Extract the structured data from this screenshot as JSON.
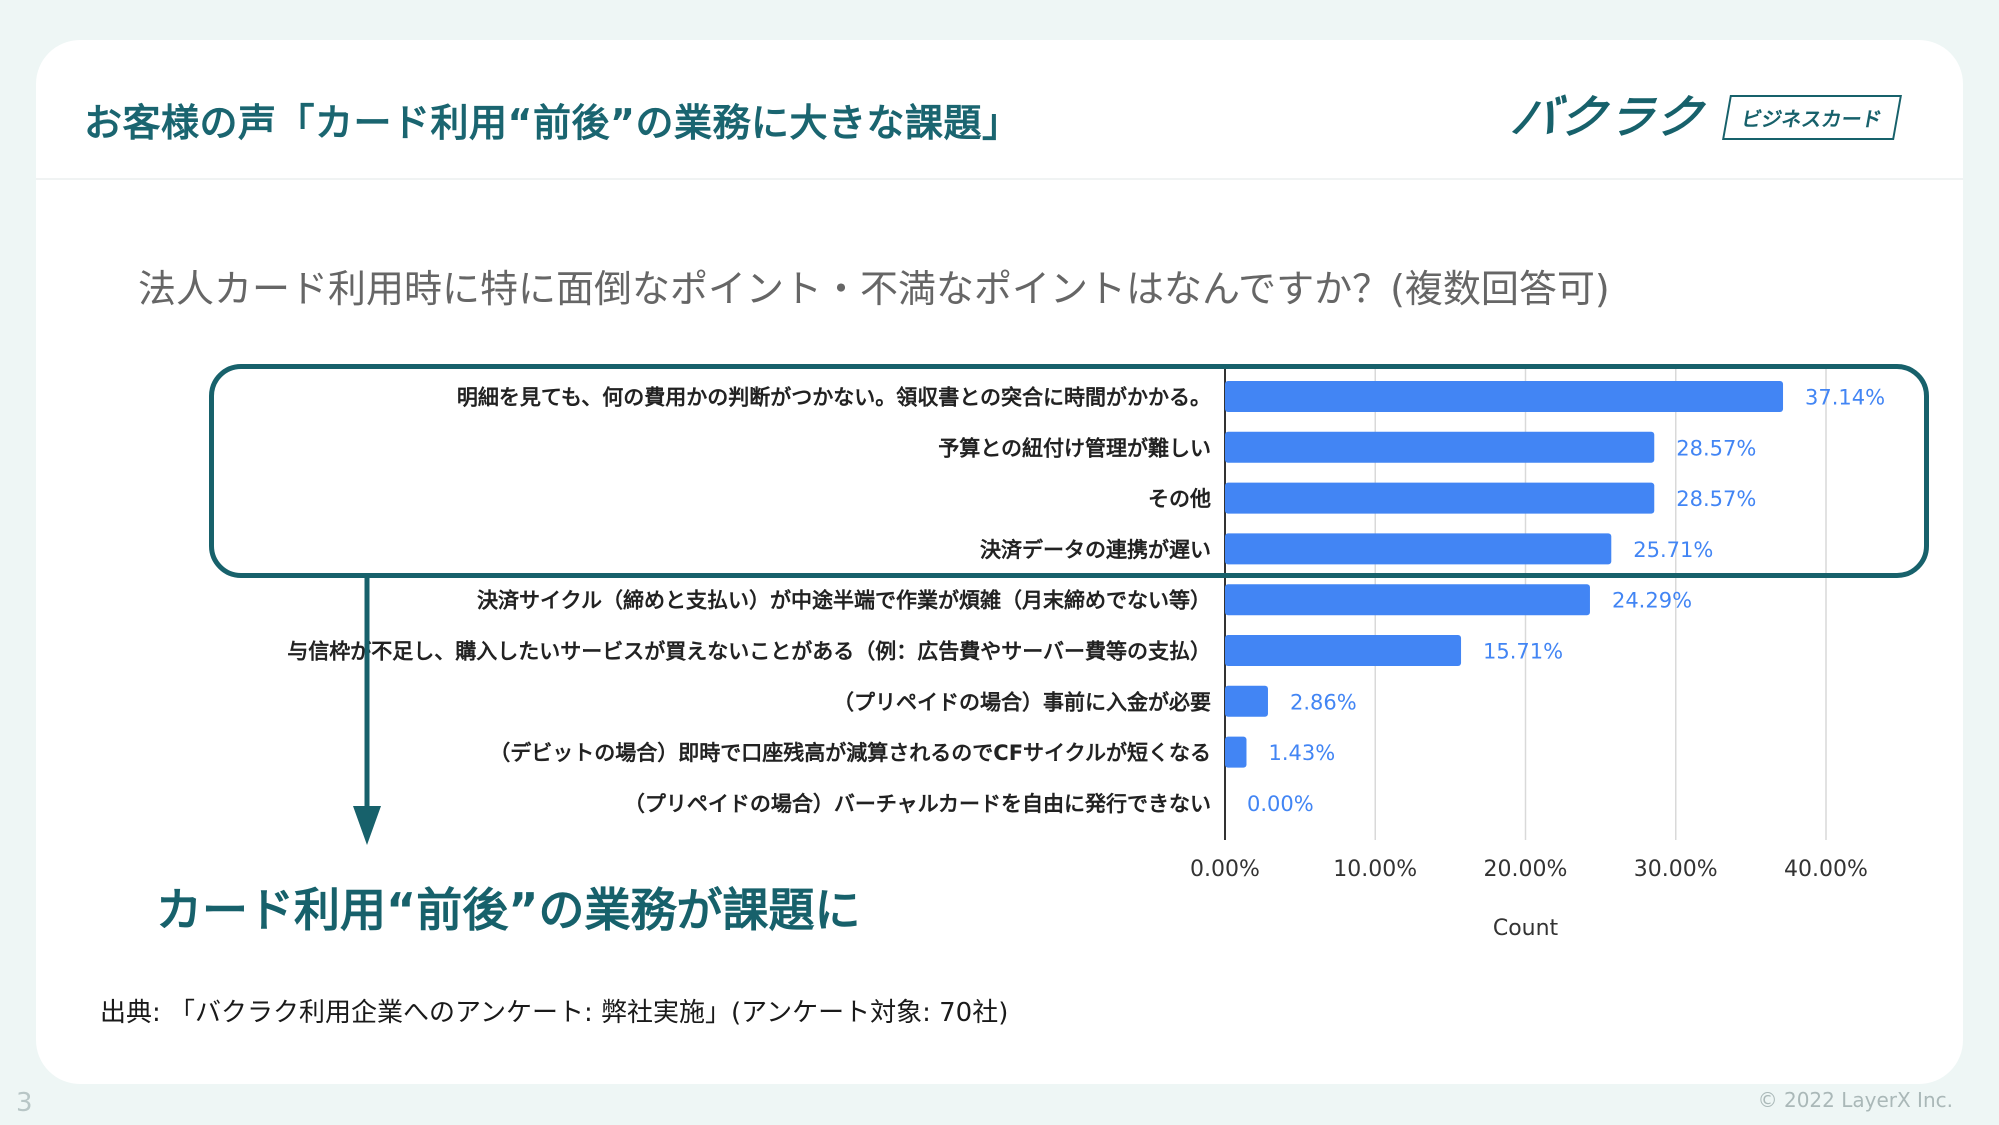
{
  "header": {
    "title": "お客様の声「カード利用“前後”の業務に大きな課題」",
    "logo_text": "バクラク",
    "logo_badge": "ビジネスカード"
  },
  "question": "法人カード利用時に特に面倒なポイント・不満なポイントはなんですか？(複数回答可)",
  "conclusion": "カード利用“前後”の業務が課題に",
  "source": "出典: 「バクラク利用企業へのアンケート: 弊社実施」(アンケート対象: 70社)",
  "footer": {
    "page_number": "3",
    "copyright": "© 2022 LayerX Inc."
  },
  "colors": {
    "bar": "#4285f4",
    "value_label": "#4285f4",
    "accent": "#17616b"
  },
  "chart_data": {
    "type": "bar",
    "orientation": "horizontal",
    "categories": [
      "明細を見ても、何の費用かの判断がつかない。領収書との突合に時間がかかる。",
      "予算との紐付け管理が難しい",
      "その他",
      "決済データの連携が遅い",
      "決済サイクル（締めと支払い）が中途半端で作業が煩雑（月末締めでない等）",
      "与信枠が不足し、購入したいサービスが買えないことがある（例：広告費やサーバー費等の支払）",
      "（プリペイドの場合）事前に入金が必要",
      "（デビットの場合）即時で口座残高が減算されるのでCFサイクルが短くなる",
      "（プリペイドの場合）バーチャルカードを自由に発行できない"
    ],
    "values": [
      37.14,
      28.57,
      28.57,
      25.71,
      24.29,
      15.71,
      2.86,
      1.43,
      0.0
    ],
    "value_labels": [
      "37.14%",
      "28.57%",
      "28.57%",
      "25.71%",
      "24.29%",
      "15.71%",
      "2.86%",
      "1.43%",
      "0.00%"
    ],
    "x_ticks": [
      0,
      10,
      20,
      30,
      40
    ],
    "x_tick_labels": [
      "0.00%",
      "10.00%",
      "20.00%",
      "30.00%",
      "40.00%"
    ],
    "xlim": [
      0,
      40
    ],
    "xlabel": "Count",
    "ylabel": "",
    "title": "",
    "grid": true,
    "highlighted_categories": 4
  }
}
